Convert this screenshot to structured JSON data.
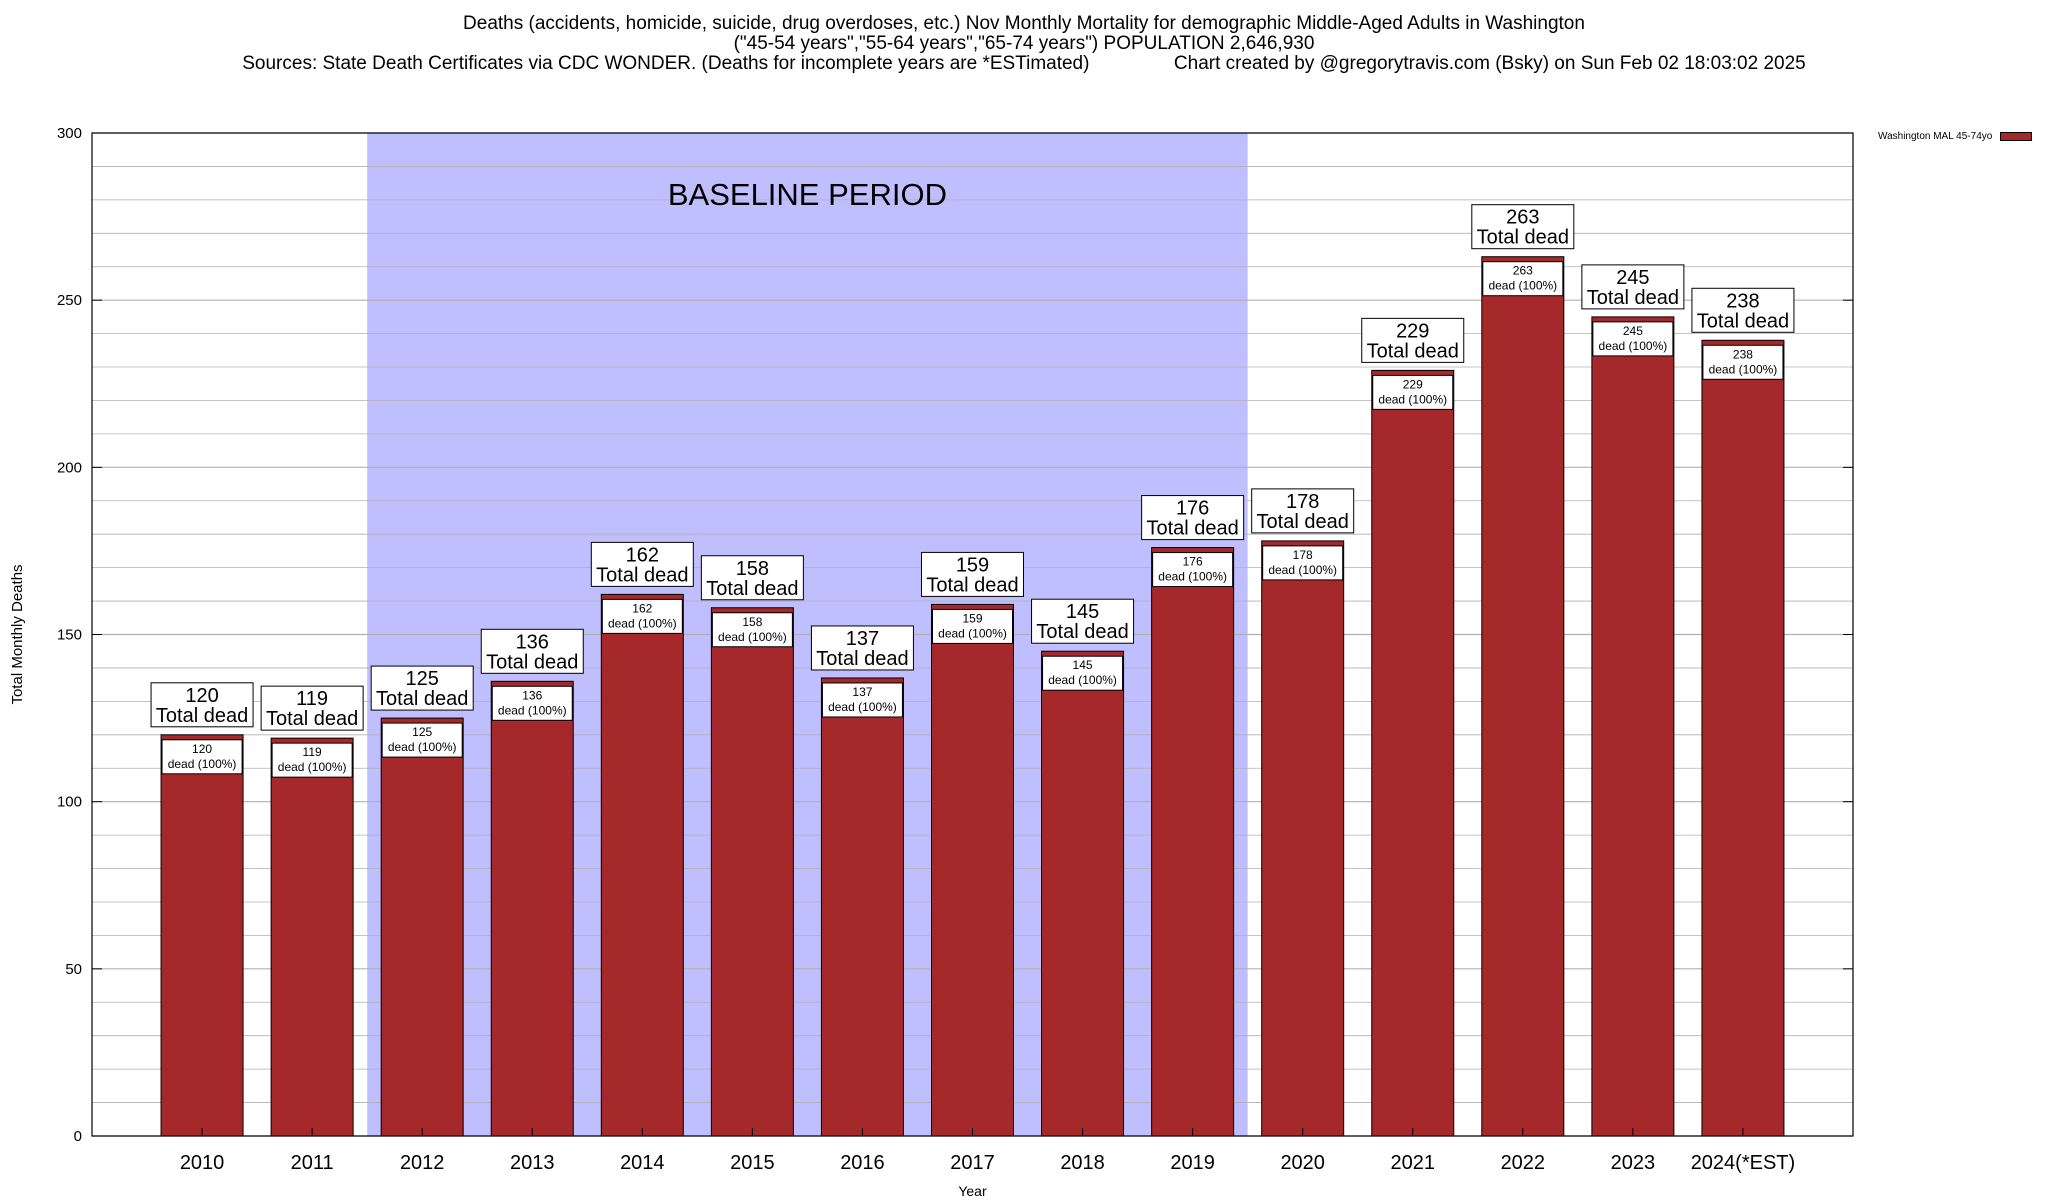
{
  "header": {
    "title_line1": "Deaths (accidents, homicide, suicide, drug overdoses, etc.) Nov Monthly Mortality for demographic Middle-Aged Adults in Washington",
    "title_line2": "(\"45-54 years\",\"55-64 years\",\"65-74 years\") POPULATION 2,646,930",
    "title_line3": "Sources: State Death Certificates via CDC WONDER. (Deaths for incomplete years are *ESTimated)                Chart created by @gregorytravis.com (Bsky) on Sun Feb 02 18:03:02 2025"
  },
  "colors": {
    "bar": "#a5292a",
    "baseline_band": "#bfbfff",
    "grid": "#b0b0b0"
  },
  "chart_data": {
    "type": "bar",
    "xlabel": "Year",
    "ylabel": "Total Monthly Deaths",
    "ylim": [
      0,
      300
    ],
    "yticks": [
      0,
      50,
      100,
      150,
      200,
      250,
      300
    ],
    "grid": true,
    "legend_position": "top-right, outside plot",
    "categories": [
      "2010",
      "2011",
      "2012",
      "2013",
      "2014",
      "2015",
      "2016",
      "2017",
      "2018",
      "2019",
      "2020",
      "2021",
      "2022",
      "2023",
      "2024(*EST)"
    ],
    "series": [
      {
        "name": "Washington MAL 45-74yo",
        "values": [
          120,
          119,
          125,
          136,
          162,
          158,
          137,
          159,
          145,
          176,
          178,
          229,
          263,
          245,
          238
        ]
      }
    ],
    "total_label_text": "Total dead",
    "segment_label_text": "dead (100%)",
    "annotation": {
      "text": "BASELINE PERIOD",
      "from_category": "2012",
      "to_category": "2019"
    }
  }
}
